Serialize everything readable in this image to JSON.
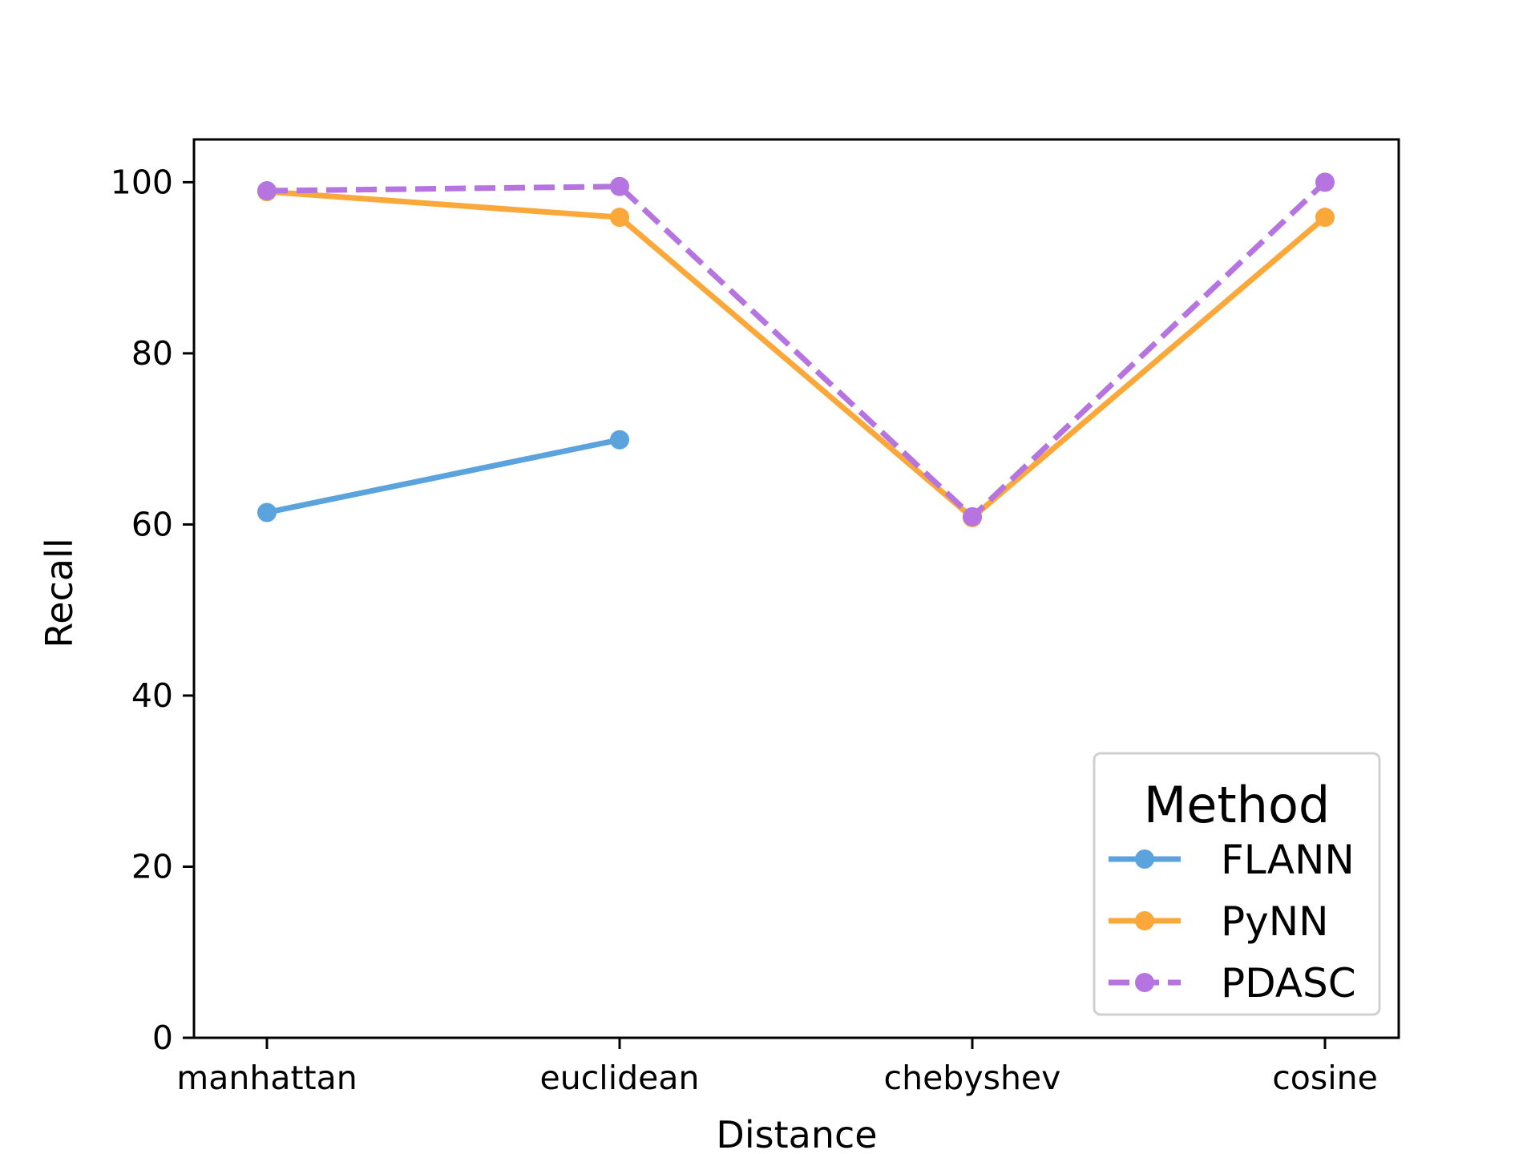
{
  "chart_data": {
    "type": "line",
    "title": "",
    "xlabel": "Distance",
    "ylabel": "Recall",
    "categories": [
      "manhattan",
      "euclidean",
      "chebyshev",
      "cosine"
    ],
    "ylim": [
      0,
      105
    ],
    "yticks": [
      0,
      20,
      40,
      60,
      80,
      100
    ],
    "grid": false,
    "legend": {
      "title": "Method",
      "placement": "lower-right"
    },
    "series": [
      {
        "name": "FLANN",
        "color": "#5ba3dd",
        "style": "solid",
        "values": [
          61.4,
          69.9,
          null,
          null
        ]
      },
      {
        "name": "PyNN",
        "color": "#f9a839",
        "style": "solid",
        "values": [
          98.9,
          95.9,
          60.8,
          95.9
        ]
      },
      {
        "name": "PDASC",
        "color": "#b574e0",
        "style": "dashed",
        "values": [
          99.0,
          99.5,
          60.9,
          100.0
        ]
      }
    ]
  }
}
